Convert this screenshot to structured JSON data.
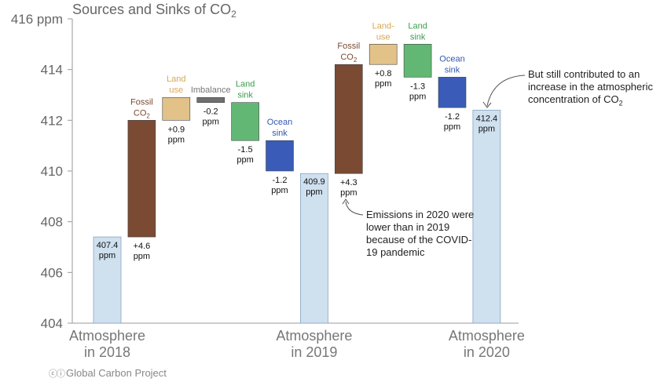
{
  "chart_data": {
    "type": "waterfall",
    "title": "Sources and Sinks of CO",
    "title_subscript": "2",
    "ylim": [
      404,
      416
    ],
    "y_ticks": [
      404,
      406,
      408,
      410,
      412,
      414,
      416
    ],
    "y_tick_labels": [
      "404",
      "406",
      "408",
      "410",
      "412",
      "414",
      "416 ppm"
    ],
    "bars": [
      {
        "id": "atm2018",
        "kind": "total",
        "start": 404,
        "end": 407.4,
        "value_label": "407.4 ppm",
        "color": "#cfe0ef"
      },
      {
        "id": "fossil2018",
        "kind": "step",
        "start": 407.4,
        "end": 412.0,
        "value_label": "+4.6 ppm",
        "name": "Fossil CO",
        "name_sub": "2",
        "name_color": "#7a4a33",
        "color": "#7a4a33"
      },
      {
        "id": "land2018",
        "kind": "step",
        "start": 412.0,
        "end": 412.9,
        "value_label": "+0.9 ppm",
        "name": "Land use",
        "name_color": "#d7a84e",
        "color": "#e2c288"
      },
      {
        "id": "imbalance2018",
        "kind": "step",
        "start": 412.9,
        "end": 412.7,
        "value_label": "-0.2 ppm",
        "name": "Imbalance",
        "name_color": "#777777",
        "color": "#6f6f6f"
      },
      {
        "id": "landsink2018",
        "kind": "step",
        "start": 412.7,
        "end": 411.2,
        "value_label": "-1.5 ppm",
        "name": "Land sink",
        "name_color": "#3a9e4a",
        "color": "#62b775"
      },
      {
        "id": "ocean2018",
        "kind": "step",
        "start": 411.2,
        "end": 410.0,
        "value_label": "-1.2 ppm",
        "name": "Ocean sink",
        "name_color": "#3358b0",
        "color": "#3a5cb8"
      },
      {
        "id": "atm2019",
        "kind": "total",
        "start": 404,
        "end": 409.9,
        "value_label": "409.9 ppm",
        "color": "#cfe0ef"
      },
      {
        "id": "fossil2019",
        "kind": "step",
        "start": 409.9,
        "end": 414.2,
        "value_label": "+4.3 ppm",
        "name": "Fossil CO",
        "name_sub": "2",
        "name_color": "#7a4a33",
        "color": "#7a4a33"
      },
      {
        "id": "land2019",
        "kind": "step",
        "start": 414.2,
        "end": 415.0,
        "value_label": "+0.8 ppm",
        "name": "Land- use",
        "name_color": "#d7a84e",
        "color": "#e2c288"
      },
      {
        "id": "landsink2019",
        "kind": "step",
        "start": 415.0,
        "end": 413.7,
        "value_label": "-1.3 ppm",
        "name": "Land sink",
        "name_color": "#3a9e4a",
        "color": "#62b775"
      },
      {
        "id": "ocean2019",
        "kind": "step",
        "start": 413.7,
        "end": 412.5,
        "value_label": "-1.2 ppm",
        "name": "Ocean sink",
        "name_color": "#3358b0",
        "color": "#3a5cb8"
      },
      {
        "id": "atm2020",
        "kind": "total",
        "start": 404,
        "end": 412.4,
        "value_label": "412.4 ppm",
        "color": "#cfe0ef"
      }
    ],
    "categories": [
      {
        "bar": "atm2018",
        "label": "Atmosphere in 2018"
      },
      {
        "bar": "atm2019",
        "label": "Atmosphere in 2019"
      },
      {
        "bar": "atm2020",
        "label": "Atmosphere in 2020"
      }
    ],
    "annotations": [
      {
        "id": "covid",
        "text": "Emissions in 2020 were lower than in 2019 because of the COVID-19 pandemic"
      },
      {
        "id": "still",
        "text": "But still contributed to an increase in the atmospheric concentration of CO",
        "sub": "2"
      }
    ],
    "colors": {
      "axis": "#999999",
      "tick_text": "#666666",
      "total_edge": "#8aa6c0"
    }
  },
  "footer": {
    "credit": "Global Carbon Project",
    "license_icon": "creative-commons-icon"
  }
}
